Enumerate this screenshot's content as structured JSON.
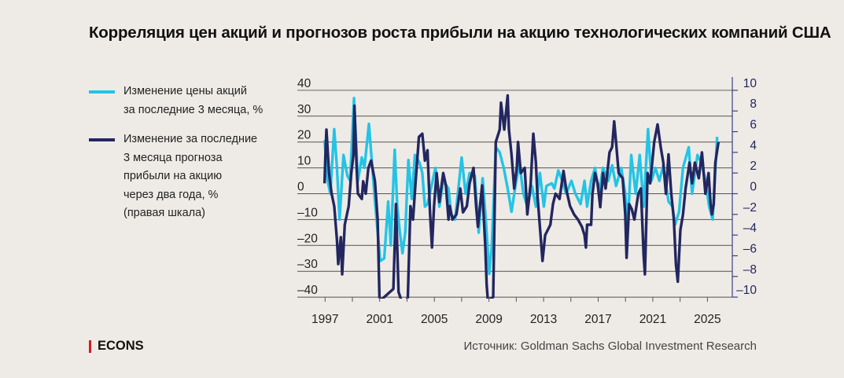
{
  "title": "Корреляция цен акций и прогнозов роста прибыли на акцию технологических компаний США",
  "legend": [
    {
      "label_lines": [
        "Изменение цены акций",
        "за последние 3 месяца, %"
      ],
      "color": "#23c4e6"
    },
    {
      "label_lines": [
        "Изменение за последние",
        "3 месяца прогноза",
        "прибыли на акцию",
        "через два года, %",
        "(правая шкала)"
      ],
      "color": "#23265f"
    }
  ],
  "footer": {
    "logo": "ECONS",
    "source": "Источник: Goldman Sachs Global Investment Research"
  },
  "chart_data": {
    "type": "line",
    "title": "Корреляция цен акций и прогнозов роста прибыли на акцию технологических компаний США",
    "left_axis": {
      "range": [
        -40,
        40
      ],
      "ticks": [
        40,
        30,
        20,
        10,
        0,
        -10,
        -20,
        -30,
        -40
      ],
      "tick_labels": [
        "40",
        "30",
        "20",
        "10",
        "0",
        "–10",
        "–20",
        "–30",
        "–40"
      ]
    },
    "right_axis": {
      "range": [
        -10,
        10
      ],
      "ticks": [
        10,
        8,
        6,
        4,
        2,
        0,
        -2,
        -4,
        -6,
        -8,
        -10
      ],
      "tick_labels": [
        "10",
        "8",
        "6",
        "4",
        "2",
        "0",
        "–2",
        "–4",
        "–6",
        "–8",
        "–10"
      ]
    },
    "x_axis": {
      "range": [
        1995.2,
        2026.9
      ],
      "tick_years": [
        1997,
        1999,
        2001,
        2003,
        2005,
        2007,
        2009,
        2011,
        2013,
        2015,
        2017,
        2019,
        2021,
        2023,
        2025
      ],
      "labels": [
        "1997",
        "2001",
        "2005",
        "2009",
        "2013",
        "2017",
        "2021",
        "2025"
      ]
    },
    "grid": true,
    "series": [
      {
        "name": "Изменение цены акций за последние 3 месяца, %",
        "axis": "left",
        "color": "#23c4e6",
        "x": [
          1996.96,
          1997.19,
          1997.38,
          1997.67,
          1997.87,
          1998.06,
          1998.35,
          1998.63,
          1998.83,
          1999.12,
          1999.4,
          1999.69,
          1999.88,
          2000.21,
          2000.46,
          2000.65,
          2001.04,
          2001.33,
          2001.62,
          2001.81,
          2002.1,
          2002.29,
          2002.48,
          2002.67,
          2002.87,
          2003.1,
          2003.35,
          2003.58,
          2003.92,
          2004.12,
          2004.31,
          2004.5,
          2005.08,
          2005.37,
          2005.65,
          2006.04,
          2006.23,
          2006.52,
          2007.0,
          2007.29,
          2007.58,
          2007.96,
          2008.25,
          2008.54,
          2008.77,
          2009.02,
          2009.21,
          2009.5,
          2009.79,
          2010.08,
          2010.37,
          2010.65,
          2010.94,
          2011.23,
          2011.52,
          2011.81,
          2012.15,
          2012.44,
          2012.73,
          2013.02,
          2013.21,
          2013.6,
          2013.79,
          2014.08,
          2014.37,
          2014.65,
          2015.04,
          2015.33,
          2015.71,
          2016.0,
          2016.19,
          2016.48,
          2016.77,
          2017.06,
          2017.35,
          2017.73,
          2018.02,
          2018.31,
          2018.69,
          2018.98,
          2019.17,
          2019.42,
          2019.75,
          2020.04,
          2020.33,
          2020.65,
          2020.9,
          2021.19,
          2021.48,
          2021.77,
          2022.15,
          2022.44,
          2022.63,
          2022.92,
          2023.21,
          2023.63,
          2023.88,
          2024.27,
          2024.56,
          2024.85,
          2025.13,
          2025.38,
          2025.71
        ],
        "y": [
          20.7,
          5,
          0,
          25,
          10,
          -10,
          15,
          7,
          5,
          37,
          5,
          14,
          10,
          27,
          10,
          -3,
          -26,
          -25,
          -3,
          -20,
          17,
          -5,
          -15,
          -23,
          -15,
          13,
          -2,
          15,
          12,
          8,
          -5,
          -4,
          10,
          -5,
          5,
          2,
          -8,
          -10,
          14,
          0,
          8,
          7,
          -15,
          6,
          -10,
          -31,
          -20,
          18,
          16,
          10,
          2,
          -7,
          3,
          12,
          0,
          -5,
          3,
          -5,
          8,
          -5,
          3,
          4,
          2,
          9,
          5,
          0,
          5,
          0,
          -4,
          5,
          -5,
          5,
          10,
          0,
          10,
          5,
          11,
          3,
          10,
          0,
          -12,
          15,
          0,
          15,
          -5,
          25,
          5,
          10,
          5,
          11,
          -3,
          -5,
          -12,
          -7,
          10,
          18,
          0,
          15,
          12,
          5,
          -5,
          -10,
          22
        ]
      },
      {
        "name": "Изменение за последние 3 месяца прогноза прибыли на акцию через два года, % (правая шкала)",
        "axis": "right",
        "color": "#23265f",
        "x": [
          1996.96,
          1997.02,
          1997.1,
          1997.29,
          1997.48,
          1997.67,
          1997.87,
          1997.96,
          1998.15,
          1998.25,
          1998.44,
          1998.73,
          1998.92,
          1999.08,
          1999.15,
          1999.31,
          1999.4,
          1999.69,
          1999.79,
          1999.98,
          2000.17,
          2000.37,
          2000.65,
          2000.85,
          2000.98,
          2001.08,
          2002.0,
          2002.19,
          2002.38,
          2002.58,
          2002.96,
          2003.06,
          2003.25,
          2003.44,
          2003.63,
          2003.87,
          2004.12,
          2004.31,
          2004.5,
          2004.69,
          2004.83,
          2004.98,
          2005.17,
          2005.37,
          2005.65,
          2005.85,
          2006.04,
          2006.13,
          2006.33,
          2006.62,
          2006.9,
          2007.1,
          2007.38,
          2007.58,
          2007.87,
          2008.06,
          2008.19,
          2008.5,
          2008.73,
          2008.83,
          2008.92,
          2009.31,
          2009.5,
          2009.79,
          2009.88,
          2010.12,
          2010.37,
          2010.46,
          2010.65,
          2010.85,
          2011.04,
          2011.13,
          2011.33,
          2011.62,
          2011.81,
          2012.06,
          2012.25,
          2012.44,
          2012.54,
          2012.73,
          2012.92,
          2013.12,
          2013.5,
          2013.69,
          2013.88,
          2014.17,
          2014.46,
          2014.65,
          2014.94,
          2015.23,
          2015.52,
          2015.81,
          2016.0,
          2016.1,
          2016.19,
          2016.48,
          2016.58,
          2016.77,
          2016.96,
          2017.15,
          2017.35,
          2017.54,
          2017.83,
          2018.02,
          2018.17,
          2018.31,
          2018.5,
          2018.79,
          2018.98,
          2019.08,
          2019.27,
          2019.46,
          2019.65,
          2019.94,
          2020.13,
          2020.33,
          2020.42,
          2020.62,
          2020.81,
          2021.1,
          2021.35,
          2021.58,
          2021.77,
          2021.96,
          2022.15,
          2022.35,
          2022.54,
          2022.69,
          2022.83,
          2023.02,
          2023.21,
          2023.4,
          2023.69,
          2023.88,
          2024.08,
          2024.37,
          2024.6,
          2024.85,
          2025.08,
          2025.23,
          2025.33,
          2025.46,
          2025.58,
          2025.81
        ],
        "y": [
          1,
          3.5,
          6.2,
          2,
          0,
          -1.2,
          -4.5,
          -6.8,
          -4.2,
          -7.8,
          -3,
          -1.2,
          2,
          3.8,
          8.5,
          2.5,
          0,
          -0.5,
          1.2,
          0,
          2.5,
          3.2,
          1.2,
          -2.5,
          -10,
          -12,
          -9.2,
          -1,
          -9.5,
          -12,
          -12,
          -10,
          -1.2,
          -2.5,
          1.2,
          5.5,
          5.8,
          3.2,
          4.2,
          -2,
          -5.2,
          -1.2,
          2,
          -0.8,
          2,
          0.8,
          -2.5,
          -1.2,
          -2.5,
          -2,
          0.5,
          -1.8,
          -1.2,
          1,
          2.5,
          -1.2,
          -3.2,
          0.8,
          -5,
          -8.8,
          -12,
          -10,
          5,
          6.2,
          8.8,
          6.2,
          9.5,
          6.2,
          3.8,
          0.5,
          2.5,
          5,
          2,
          2.5,
          -2,
          1,
          5.8,
          3,
          0,
          -3.2,
          -6.5,
          -4,
          -3,
          -1,
          0,
          -0.5,
          2.2,
          0.5,
          -1.2,
          -2,
          -2.5,
          -3.2,
          -4,
          -5.2,
          -3,
          -3,
          0,
          2,
          1,
          -1.3,
          2,
          0.5,
          4,
          4.5,
          7,
          5,
          2,
          1.5,
          -2,
          -6.2,
          -1,
          -1.5,
          -2.5,
          0,
          0.5,
          -6,
          -7.8,
          2,
          1,
          5,
          6.7,
          4.5,
          3,
          0,
          3.8,
          0,
          -2.5,
          -6.8,
          -8.5,
          -3.5,
          -2,
          0.5,
          3,
          1,
          3,
          1.5,
          4,
          0,
          2,
          -1,
          -2,
          -1,
          3,
          5
        ]
      }
    ]
  }
}
